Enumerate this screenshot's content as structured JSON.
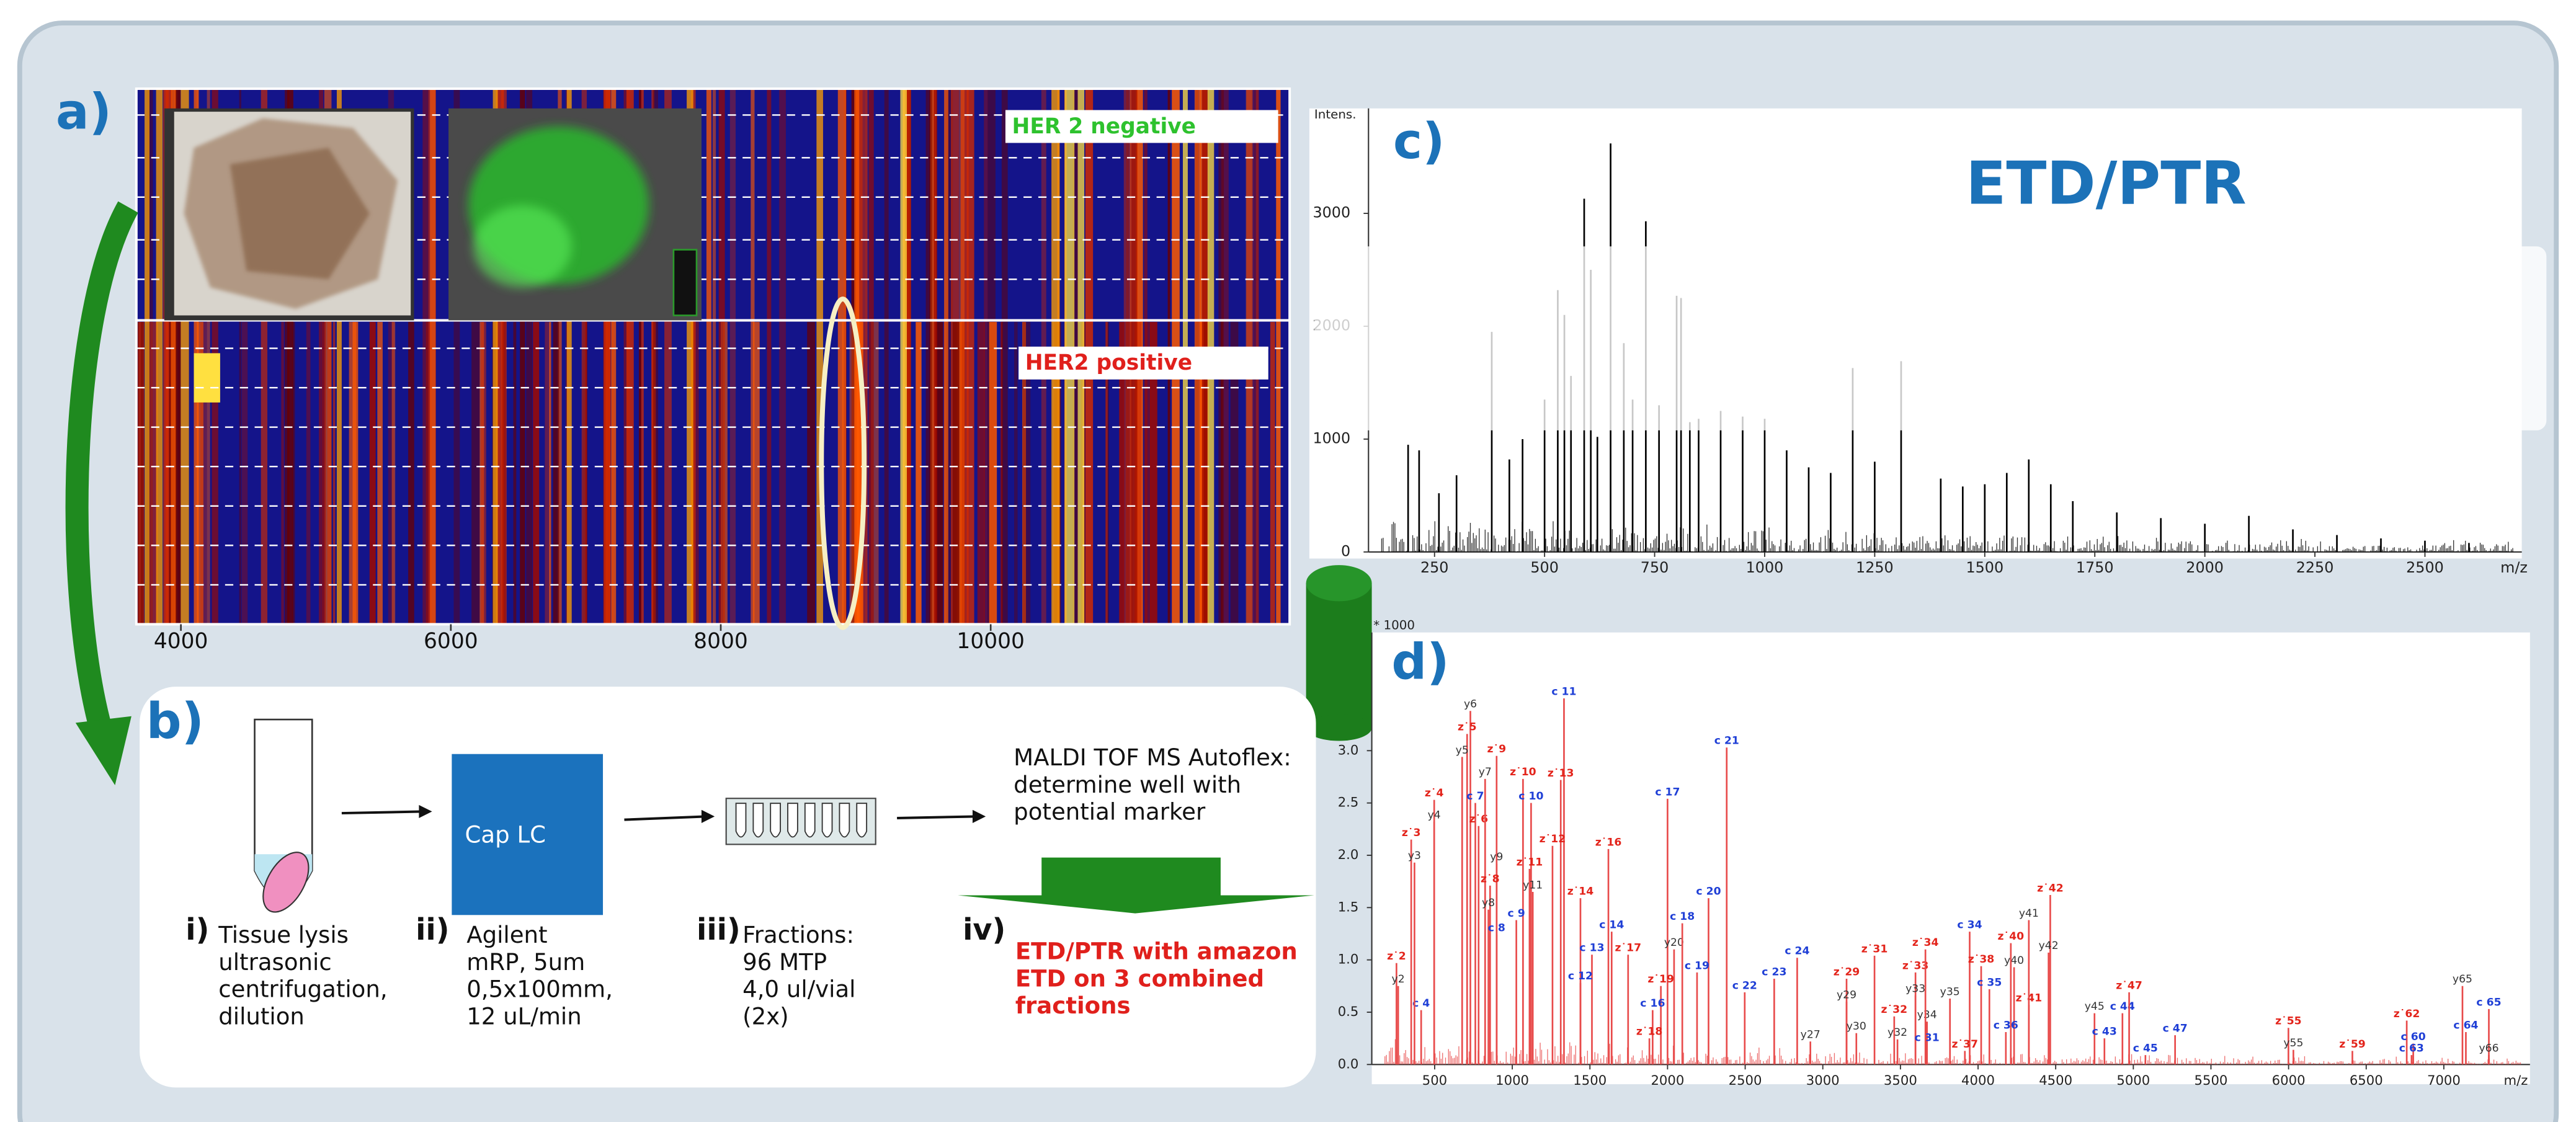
{
  "panel_a": {
    "label": "a)",
    "xlim": [
      3670,
      12215
    ],
    "xticks": [
      4000,
      6000,
      8000,
      10000
    ],
    "her2_negative": "HER 2 negative",
    "her2_positive": "HER2 positive"
  },
  "panel_b": {
    "label": "b)",
    "device": "Cap LC",
    "maldi": [
      "MALDI TOF MS Autoflex:",
      "determine well with",
      "potential marker"
    ],
    "steps": [
      {
        "numeral": "i)",
        "lines": [
          "Tissue lysis",
          "ultrasonic",
          "centrifugation,",
          "dilution"
        ]
      },
      {
        "numeral": "ii)",
        "lines": [
          "Agilent",
          "mRP, 5um",
          "0,5x100mm,",
          "12 uL/min"
        ]
      },
      {
        "numeral": "iii)",
        "lines": [
          "Fractions:",
          "96 MTP",
          "4,0 ul/vial",
          "(2x)"
        ]
      },
      {
        "numeral": "iv)",
        "lines": [
          "ETD/PTR with amazon",
          "ETD on 3 combined",
          "fractions"
        ]
      }
    ]
  },
  "chart_data": [
    {
      "type": "stick",
      "panel_label": "c)",
      "title": "ETD/PTR",
      "y_label": "Intens.",
      "x_label": "m/z",
      "color": "#000000",
      "xlim": [
        100,
        2720
      ],
      "ylim": [
        0,
        3930
      ],
      "xticks": [
        250,
        500,
        750,
        1000,
        1250,
        1500,
        1750,
        2000,
        2250,
        2500
      ],
      "yticks": [
        0,
        1000,
        2000,
        3000
      ],
      "x": [
        190,
        215,
        260,
        300,
        380,
        420,
        450,
        500,
        530,
        545,
        560,
        590,
        605,
        620,
        650,
        680,
        700,
        730,
        760,
        800,
        810,
        830,
        850,
        900,
        950,
        1000,
        1050,
        1100,
        1150,
        1200,
        1250,
        1310,
        1400,
        1450,
        1500,
        1550,
        1600,
        1650,
        1700,
        1800,
        1900,
        2000,
        2100,
        2200,
        2300,
        2400,
        2500,
        2600
      ],
      "values": [
        950,
        900,
        520,
        680,
        1950,
        820,
        1000,
        1350,
        2320,
        2100,
        1560,
        3130,
        2500,
        1020,
        3620,
        1850,
        1350,
        2930,
        1300,
        2270,
        2250,
        1150,
        1180,
        1250,
        1200,
        1180,
        900,
        750,
        700,
        1630,
        800,
        1690,
        650,
        580,
        600,
        700,
        820,
        600,
        450,
        350,
        300,
        250,
        320,
        200,
        150,
        120,
        100,
        80
      ]
    },
    {
      "type": "stick",
      "panel_label": "d)",
      "y_label": "* 1000",
      "x_label": "m/z",
      "color": "#e84a4a",
      "label_colors": {
        "c": "#1f3fd6",
        "z": "#e3241b",
        "y": "#333333"
      },
      "xlim": [
        95,
        7555
      ],
      "ylim": [
        0,
        4.13
      ],
      "xticks": [
        500,
        1000,
        1500,
        2000,
        2500,
        3000,
        3500,
        4000,
        4500,
        5000,
        5500,
        6000,
        6500,
        7000
      ],
      "yticks": [
        {
          "value": 0,
          "label": "0.0"
        },
        0.5,
        {
          "value": 1,
          "label": "1.0"
        },
        1.5,
        {
          "value": 2,
          "label": "2.0"
        },
        2.5,
        {
          "value": 3,
          "label": "3.0"
        }
      ],
      "peak_labels": [
        "z˙2",
        "y2",
        "c 4",
        "z˙3",
        "y3",
        "z˙4",
        "y4",
        "y6",
        "z˙5",
        "y5",
        "c 7",
        "z˙6",
        "y7",
        "z˙9",
        "z˙10",
        "c 10",
        "y9",
        "z˙8",
        "y8",
        "c 8",
        "z˙11",
        "y11",
        "c 9",
        "c 11",
        "z˙13",
        "z˙12",
        "z˙14",
        "c 13",
        "c 12",
        "z˙16",
        "c 14",
        "z˙17",
        "c 17",
        "y20",
        "c 18",
        "c 20",
        "c 21",
        "z˙19",
        "c 16",
        "z˙18",
        "c 19",
        "c 22",
        "c 23",
        "c 24",
        "y27",
        "z˙29",
        "y29",
        "y30",
        "z˙31",
        "z˙32",
        "y32",
        "z˙33",
        "y33",
        "y34",
        "c 31",
        "z˙34",
        "y35",
        "c 34",
        "z˙38",
        "c 35",
        "y40",
        "z˙40",
        "z˙37",
        "c 36",
        "z˙41",
        "y41",
        "z˙42",
        "y42",
        "y45",
        "c 44",
        "c 43",
        "c 45",
        "z˙47",
        "c 47",
        "z˙55",
        "y55",
        "z˙59",
        "z˙62",
        "c 60",
        "c 63",
        "c 64",
        "c 65",
        "y65",
        "y66"
      ],
      "x": [
        254,
        265,
        413,
        349,
        370,
        497,
        497,
        730,
        709,
        677,
        762,
        783,
        825,
        899,
        1069,
        1121,
        899,
        857,
        846,
        899,
        1111,
        1132,
        1026,
        1333,
        1312,
        1259,
        1439,
        1513,
        1439,
        1619,
        1640,
        1746,
        2000,
        2042,
        2095,
        2264,
        2381,
        1957,
        1904,
        1883,
        2190,
        2497,
        2687,
        2835,
        2920,
        3153,
        3153,
        3216,
        3333,
        3460,
        3481,
        3597,
        3597,
        3671,
        3671,
        3661,
        3819,
        3946,
        4020,
        4073,
        4232,
        4211,
        3915,
        4179,
        4327,
        4327,
        4465,
        4454,
        4750,
        4930,
        4814,
        5078,
        4973,
        5269,
        5999,
        6031,
        6411,
        6761,
        6803,
        6792,
        7142,
        7290,
        7120,
        7290
      ],
      "values": [
        0.97,
        0.75,
        0.52,
        2.15,
        1.93,
        2.53,
        2.32,
        3.38,
        3.16,
        2.94,
        2.5,
        2.28,
        2.73,
        2.95,
        2.73,
        2.5,
        1.92,
        1.71,
        1.48,
        1.24,
        1.87,
        1.65,
        1.38,
        3.5,
        2.72,
        2.09,
        1.59,
        1.05,
        0.78,
        2.06,
        1.27,
        1.05,
        2.54,
        1.1,
        1.35,
        1.59,
        3.03,
        0.75,
        0.52,
        0.25,
        0.88,
        0.69,
        0.82,
        1.02,
        0.22,
        0.82,
        0.6,
        0.3,
        1.04,
        0.46,
        0.24,
        0.88,
        0.66,
        0.41,
        0.19,
        1.1,
        0.63,
        1.27,
        0.94,
        0.72,
        0.93,
        1.16,
        0.13,
        0.31,
        0.57,
        1.38,
        1.62,
        1.07,
        0.49,
        0.49,
        0.25,
        0.09,
        0.69,
        0.28,
        0.35,
        0.14,
        0.13,
        0.42,
        0.2,
        0.09,
        0.31,
        0.53,
        0.75,
        0.09
      ]
    }
  ]
}
